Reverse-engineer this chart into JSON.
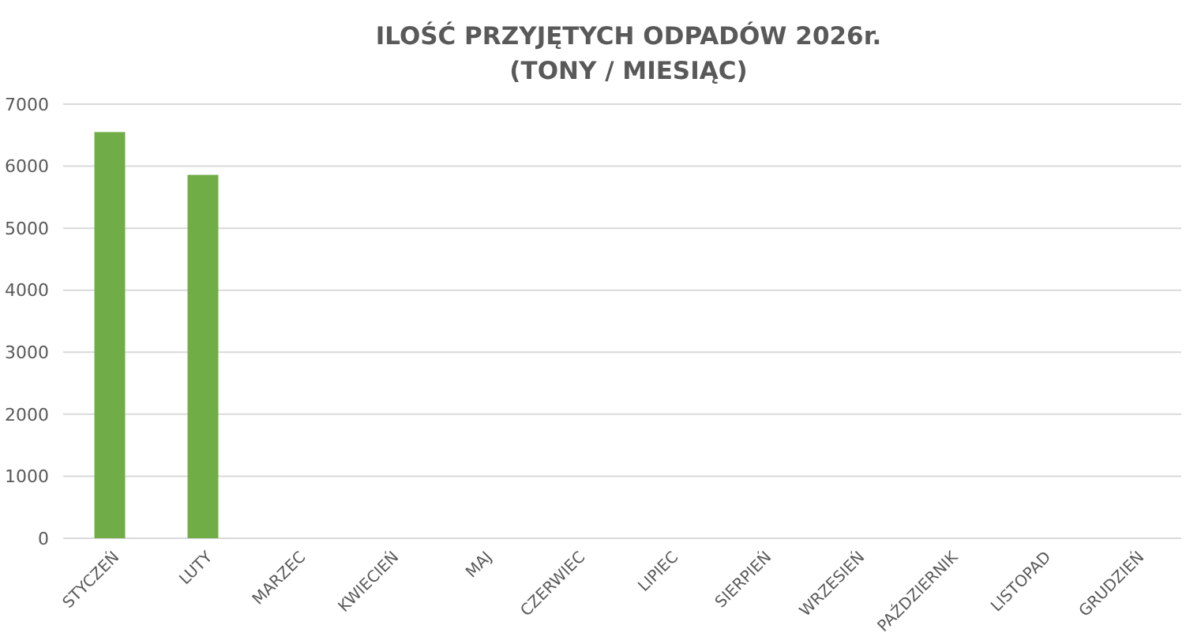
{
  "chart_data": {
    "type": "bar",
    "title": "ILOŚĆ PRZYJĘTYCH ODPADÓW 2026r.\n(TONY / MIESIĄC)",
    "categories": [
      "STYCZEŃ",
      "LUTY",
      "MARZEC",
      "KWIECIEŃ",
      "MAJ",
      "CZERWIEC",
      "LIPIEC",
      "SIERPIEŃ",
      "WRZESIEŃ",
      "PAŹDZIERNIK",
      "LISTOPAD",
      "GRUDZIEŃ"
    ],
    "values": [
      6550,
      5860,
      null,
      null,
      null,
      null,
      null,
      null,
      null,
      null,
      null,
      null
    ],
    "color": "#70ad47",
    "ylim": [
      0,
      7000
    ],
    "yticks": [
      0,
      1000,
      2000,
      3000,
      4000,
      5000,
      6000,
      7000
    ],
    "grid": "y"
  }
}
